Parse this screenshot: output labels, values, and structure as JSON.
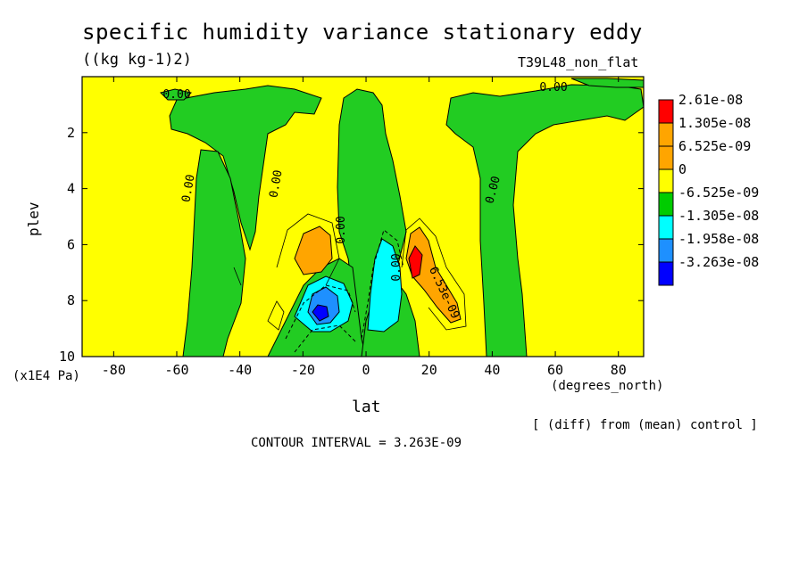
{
  "chart_data": {
    "type": "contour",
    "title": "specific humidity variance stationary eddy",
    "units": "((kg kg-1)2)",
    "run_label": "T39L48_non_flat",
    "xlabel": "lat",
    "x_units": "(degrees_north)",
    "ylabel": "plev",
    "y_units": "(x1E4 Pa)",
    "note": "[ (diff) from (mean) control ]",
    "contour_interval_text": "CONTOUR INTERVAL = 3.263E-09",
    "xlim": [
      -90,
      88
    ],
    "ylim": [
      10,
      0
    ],
    "x_ticks": [
      -80,
      -60,
      -40,
      -20,
      0,
      20,
      40,
      60,
      80
    ],
    "y_ticks": [
      2,
      4,
      6,
      8,
      10
    ],
    "contour_labels": [
      "0.00",
      "0.00",
      "0.00",
      "0.00",
      "0.00",
      "0.00",
      "0.00",
      "6.53e-09"
    ],
    "legend": {
      "labels": [
        "2.61e-08",
        "1.305e-08",
        "6.525e-09",
        "0",
        "-6.525e-09",
        "-1.305e-08",
        "-1.958e-08",
        "-3.263e-08"
      ],
      "colors": [
        "#ff0000",
        "#ffa500",
        "#ffa500",
        "#ffff00",
        "#00cc00",
        "#00ffff",
        "#1e90ff",
        "#0000ff"
      ]
    },
    "colors": {
      "zero_to_pos": "#ffff00",
      "small_neg": "#22cc22",
      "mid_pos": "#ffa500",
      "high_pos": "#ff0000",
      "mid_neg": "#00ffff",
      "strong_neg": "#1e90ff",
      "min_neg": "#0000ff"
    }
  }
}
